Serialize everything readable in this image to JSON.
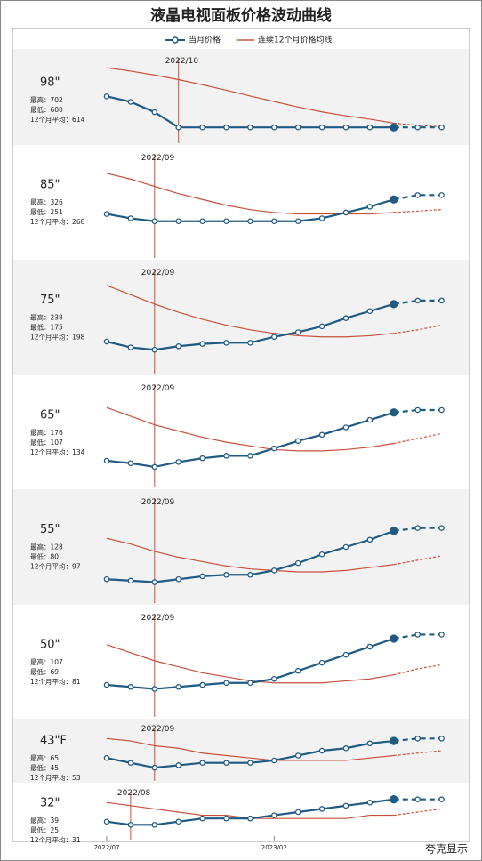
{
  "chart_data": {
    "type": "line",
    "title": "液晶电视面板价格波动曲线",
    "source_mark": "夸克显示",
    "forecast_from": 12,
    "legend": [
      {
        "name": "当月价格",
        "color": "#1f5a82"
      },
      {
        "name": "连续12个月价格均线",
        "color": "#c8503a"
      }
    ],
    "categories": [
      "2022/07",
      null,
      null,
      null,
      null,
      null,
      null,
      "2023/02",
      null,
      null,
      null,
      null,
      null,
      null,
      null
    ],
    "panels": [
      {
        "label": "98\"",
        "stats": [
          "最高：702",
          "最低：600",
          "12个月平均：614"
        ],
        "marker": {
          "index": 3,
          "label": "2022/10"
        },
        "ylim": [
          580,
          820
        ],
        "current": [
          702,
          684,
          650,
          600,
          600,
          600,
          600,
          600,
          600,
          600,
          600,
          600,
          600,
          600,
          600
        ],
        "average": [
          796,
          785,
          772,
          757,
          740,
          722,
          703,
          685,
          667,
          651,
          638,
          627,
          614,
          607,
          602
        ]
      },
      {
        "label": "85\"",
        "stats": [
          "最高：326",
          "最低：251",
          "12个月平均：268"
        ],
        "marker": {
          "index": 2,
          "label": "2022/09"
        },
        "ylim": [
          240,
          300
        ],
        "current": [
          262,
          259,
          257,
          257,
          257,
          257,
          257,
          257,
          257,
          259,
          263,
          267,
          272,
          275,
          275
        ],
        "average": [
          290,
          286,
          281,
          276,
          272,
          268,
          265,
          263,
          262,
          262,
          262,
          262,
          263,
          264,
          265
        ]
      },
      {
        "label": "75\"",
        "stats": [
          "最高：238",
          "最低：175",
          "12个月平均：198"
        ],
        "marker": {
          "index": 2,
          "label": "2022/09"
        },
        "ylim": [
          165,
          240
        ],
        "current": [
          182,
          177,
          175,
          178,
          180,
          181,
          181,
          186,
          190,
          195,
          202,
          208,
          214,
          217,
          217
        ],
        "average": [
          230,
          222,
          214,
          207,
          201,
          196,
          192,
          189,
          187,
          186,
          186,
          187,
          189,
          192,
          196
        ]
      },
      {
        "label": "65\"",
        "stats": [
          "最高：176",
          "最低：107",
          "12个月平均：134"
        ],
        "marker": {
          "index": 2,
          "label": "2022/09"
        },
        "ylim": [
          100,
          170
        ],
        "current": [
          112,
          110,
          107,
          111,
          114,
          116,
          116,
          122,
          128,
          133,
          139,
          145,
          151,
          153,
          153
        ],
        "average": [
          155,
          148,
          141,
          136,
          131,
          127,
          124,
          121,
          120,
          120,
          121,
          123,
          126,
          130,
          134
        ]
      },
      {
        "label": "55\"",
        "stats": [
          "最高：128",
          "最低：80",
          "12个月平均：97"
        ],
        "marker": {
          "index": 2,
          "label": "2022/09"
        },
        "ylim": [
          75,
          135
        ],
        "current": [
          83,
          82,
          81,
          83,
          85,
          86,
          86,
          89,
          94,
          100,
          105,
          110,
          116,
          118,
          118
        ],
        "average": [
          111,
          107,
          102,
          98,
          95,
          92,
          90,
          89,
          88,
          88,
          89,
          91,
          93,
          96,
          99
        ]
      },
      {
        "label": "50\"",
        "stats": [
          "最高：107",
          "最低：69",
          "12个月平均：81"
        ],
        "marker": {
          "index": 2,
          "label": "2022/09"
        },
        "ylim": [
          62,
          105
        ],
        "current": [
          72,
          71,
          70,
          71,
          72,
          73,
          73,
          75,
          79,
          83,
          87,
          91,
          95,
          97,
          97
        ],
        "average": [
          92,
          88,
          84,
          81,
          78,
          76,
          74,
          73,
          73,
          73,
          74,
          75,
          77,
          80,
          82
        ]
      },
      {
        "label": "43\"F",
        "stats": [
          "最高：65",
          "最低：45",
          "12个月平均：53"
        ],
        "marker": {
          "index": 2,
          "label": "2022/09"
        },
        "ylim": [
          42,
          62
        ],
        "current": [
          49,
          47,
          45,
          46,
          47,
          47,
          47,
          48,
          50,
          52,
          53,
          55,
          56,
          57,
          57
        ],
        "average": [
          57,
          56,
          54,
          53,
          51,
          50,
          49,
          48,
          48,
          48,
          48,
          49,
          50,
          51,
          52
        ]
      },
      {
        "label": "32\"",
        "stats": [
          "最高：39",
          "最低：25",
          "12个月平均：31"
        ],
        "marker": {
          "index": 1,
          "label": "2022/08"
        },
        "ylim": [
          22,
          36
        ],
        "current": [
          26,
          25,
          25,
          26,
          27,
          27,
          27,
          28,
          29,
          30,
          31,
          32,
          33,
          33,
          33
        ],
        "average": [
          32,
          31,
          30,
          29,
          28,
          28,
          27,
          27,
          27,
          27,
          27,
          28,
          28,
          29,
          30
        ]
      }
    ]
  }
}
